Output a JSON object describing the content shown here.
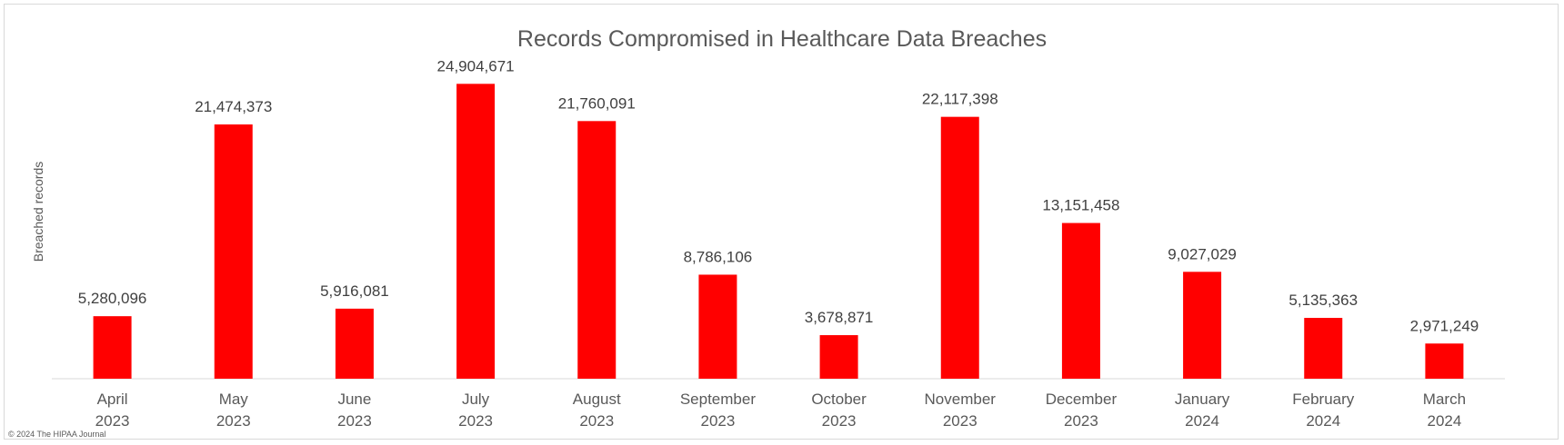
{
  "chart_data": {
    "type": "bar",
    "title": "Records Compromised in Healthcare Data Breaches",
    "xlabel": "",
    "ylabel": "Breached records",
    "categories": [
      [
        "April",
        "2023"
      ],
      [
        "May",
        "2023"
      ],
      [
        "June",
        "2023"
      ],
      [
        "July",
        "2023"
      ],
      [
        "August",
        "2023"
      ],
      [
        "September",
        "2023"
      ],
      [
        "October",
        "2023"
      ],
      [
        "November",
        "2023"
      ],
      [
        "December",
        "2023"
      ],
      [
        "January",
        "2024"
      ],
      [
        "February",
        "2024"
      ],
      [
        "March",
        "2024"
      ]
    ],
    "values": [
      5280096,
      21474373,
      5916081,
      24904671,
      21760091,
      8786106,
      3678871,
      22117398,
      13151458,
      9027029,
      5135363,
      2971249
    ],
    "value_labels": [
      "5,280,096",
      "21,474,373",
      "5,916,081",
      "24,904,671",
      "21,760,091",
      "8,786,106",
      "3,678,871",
      "22,117,398",
      "13,151,458",
      "9,027,029",
      "5,135,363",
      "2,971,249"
    ],
    "ylim": [
      0,
      27000000
    ],
    "grid": false,
    "legend": "none",
    "bar_color": "#ff0000",
    "copyright": "© 2024 The HIPAA Journal"
  }
}
